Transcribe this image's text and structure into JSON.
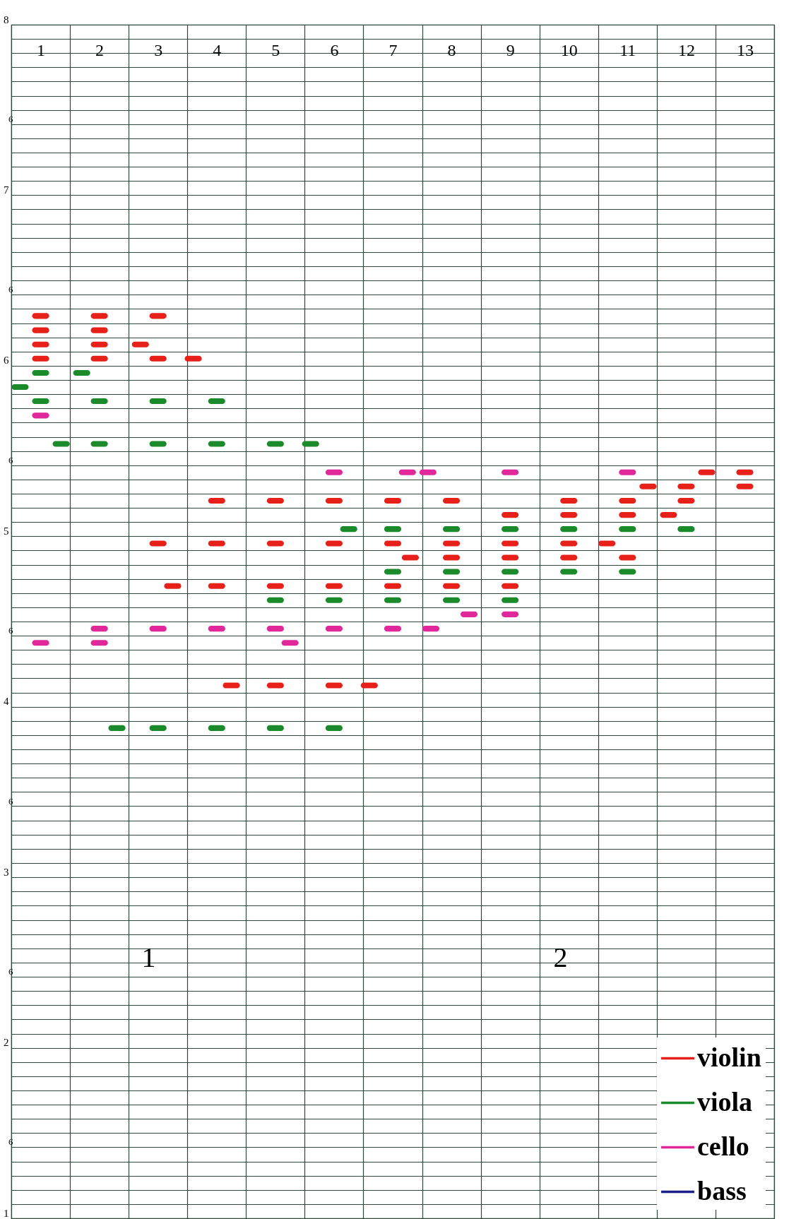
{
  "chart_data": {
    "type": "scatter",
    "annotations": [
      "6",
      "6",
      "6",
      "6",
      "6",
      "6",
      "6",
      "1",
      "2"
    ],
    "series": [
      {
        "name": "violin",
        "color": "#e8201a",
        "x": [
          1,
          2,
          3,
          1,
          2,
          1,
          2,
          2.7,
          1,
          2,
          3,
          3.6,
          12.35,
          13,
          11.35,
          12,
          13,
          4,
          5,
          6,
          7,
          8,
          10,
          11,
          12,
          9,
          10,
          11,
          11.7,
          3,
          4,
          5,
          6,
          7,
          8,
          9,
          10,
          10.65,
          7.3,
          8,
          9,
          10,
          11,
          3.25,
          4,
          5,
          6,
          7,
          8,
          9,
          4.25,
          5,
          6,
          6.6
        ],
        "values": [
          6.292,
          6.292,
          6.292,
          6.208,
          6.208,
          6.125,
          6.125,
          6.125,
          6.042,
          6.042,
          6.042,
          6.042,
          5.375,
          5.375,
          5.292,
          5.292,
          5.292,
          5.208,
          5.208,
          5.208,
          5.208,
          5.208,
          5.208,
          5.208,
          5.208,
          5.125,
          5.125,
          5.125,
          5.125,
          4.958,
          4.958,
          4.958,
          4.958,
          4.958,
          4.958,
          4.958,
          4.958,
          4.958,
          4.875,
          4.875,
          4.875,
          4.875,
          4.875,
          4.708,
          4.708,
          4.708,
          4.708,
          4.708,
          4.708,
          4.708,
          4.125,
          4.125,
          4.125,
          4.125
        ]
      },
      {
        "name": "viola",
        "color": "#1a8a2a",
        "x": [
          1,
          1.7,
          0.65,
          1,
          2,
          3,
          4,
          1.35,
          2,
          3,
          4,
          5,
          5.6,
          6.25,
          7,
          8,
          9,
          10,
          11,
          12,
          7,
          8,
          9,
          10,
          11,
          5,
          6,
          7,
          8,
          9,
          2.3,
          3,
          4,
          5,
          6
        ],
        "values": [
          5.958,
          5.958,
          5.875,
          5.792,
          5.792,
          5.792,
          5.792,
          5.542,
          5.542,
          5.542,
          5.542,
          5.542,
          5.542,
          5.042,
          5.042,
          5.042,
          5.042,
          5.042,
          5.042,
          5.042,
          4.792,
          4.792,
          4.792,
          4.792,
          4.792,
          4.625,
          4.625,
          4.625,
          4.625,
          4.625,
          3.875,
          3.875,
          3.875,
          3.875,
          3.875
        ]
      },
      {
        "name": "cello",
        "color": "#e0289a",
        "x": [
          1,
          6,
          7.25,
          7.6,
          9,
          11,
          8.3,
          9,
          2,
          3,
          4,
          5,
          6,
          7,
          7.65,
          1,
          2,
          5.25
        ],
        "values": [
          5.708,
          5.375,
          5.375,
          5.375,
          5.375,
          5.375,
          4.542,
          4.542,
          4.458,
          4.458,
          4.458,
          4.458,
          4.458,
          4.458,
          4.458,
          4.375,
          4.375,
          4.375
        ]
      },
      {
        "name": "bass",
        "color": "#1f1f8c"
      }
    ],
    "xlim": [
      0.5,
      13.5
    ],
    "xticks": [
      {
        "value": 0.5,
        "label": null
      },
      1,
      {
        "value": 1.5,
        "label": null
      },
      2,
      {
        "value": 2.5,
        "label": null
      },
      3,
      {
        "value": 3.5,
        "label": null
      },
      4,
      {
        "value": 4.5,
        "label": null
      },
      5,
      {
        "value": 5.5,
        "label": null
      },
      6,
      {
        "value": 6.5,
        "label": null
      },
      7,
      {
        "value": 7.5,
        "label": null
      },
      8,
      {
        "value": 8.5,
        "label": null
      },
      9,
      {
        "value": 9.5,
        "label": null
      },
      10,
      {
        "value": 10.5,
        "label": null
      },
      11,
      {
        "value": 11.5,
        "label": null
      },
      12,
      {
        "value": 12.5,
        "label": null
      },
      13,
      {
        "value": 13.5,
        "label": null
      }
    ],
    "ylim": [
      1,
      8
    ],
    "yticks": [
      1,
      {
        "value": 1.083,
        "label": null
      },
      {
        "value": 1.167,
        "label": null
      },
      {
        "value": 1.25,
        "label": null
      },
      {
        "value": 1.333,
        "label": null
      },
      {
        "value": 1.417,
        "label": null
      },
      {
        "value": 1.5,
        "label": null
      },
      {
        "value": 1.583,
        "label": null
      },
      {
        "value": 1.667,
        "label": null
      },
      {
        "value": 1.75,
        "label": null
      },
      {
        "value": 1.833,
        "label": null
      },
      {
        "value": 1.917,
        "label": null
      },
      2,
      {
        "value": 2.083,
        "label": null
      },
      {
        "value": 2.167,
        "label": null
      },
      {
        "value": 2.25,
        "label": null
      },
      {
        "value": 2.333,
        "label": null
      },
      {
        "value": 2.417,
        "label": null
      },
      {
        "value": 2.5,
        "label": null
      },
      {
        "value": 2.583,
        "label": null
      },
      {
        "value": 2.667,
        "label": null
      },
      {
        "value": 2.75,
        "label": null
      },
      {
        "value": 2.833,
        "label": null
      },
      {
        "value": 2.917,
        "label": null
      },
      3,
      {
        "value": 3.083,
        "label": null
      },
      {
        "value": 3.167,
        "label": null
      },
      {
        "value": 3.25,
        "label": null
      },
      {
        "value": 3.333,
        "label": null
      },
      {
        "value": 3.417,
        "label": null
      },
      {
        "value": 3.5,
        "label": null
      },
      {
        "value": 3.583,
        "label": null
      },
      {
        "value": 3.667,
        "label": null
      },
      {
        "value": 3.75,
        "label": null
      },
      {
        "value": 3.833,
        "label": null
      },
      {
        "value": 3.917,
        "label": null
      },
      4,
      {
        "value": 4.083,
        "label": null
      },
      {
        "value": 4.167,
        "label": null
      },
      {
        "value": 4.25,
        "label": null
      },
      {
        "value": 4.333,
        "label": null
      },
      {
        "value": 4.417,
        "label": null
      },
      {
        "value": 4.5,
        "label": null
      },
      {
        "value": 4.583,
        "label": null
      },
      {
        "value": 4.667,
        "label": null
      },
      {
        "value": 4.75,
        "label": null
      },
      {
        "value": 4.833,
        "label": null
      },
      {
        "value": 4.917,
        "label": null
      },
      5,
      {
        "value": 5.083,
        "label": null
      },
      {
        "value": 5.167,
        "label": null
      },
      {
        "value": 5.25,
        "label": null
      },
      {
        "value": 5.333,
        "label": null
      },
      {
        "value": 5.417,
        "label": null
      },
      {
        "value": 5.5,
        "label": null
      },
      {
        "value": 5.583,
        "label": null
      },
      {
        "value": 5.667,
        "label": null
      },
      {
        "value": 5.75,
        "label": null
      },
      {
        "value": 5.833,
        "label": null
      },
      {
        "value": 5.917,
        "label": null
      },
      6,
      {
        "value": 6.083,
        "label": null
      },
      {
        "value": 6.167,
        "label": null
      },
      {
        "value": 6.25,
        "label": null
      },
      {
        "value": 6.333,
        "label": null
      },
      {
        "value": 6.417,
        "label": null
      },
      {
        "value": 6.5,
        "label": null
      },
      {
        "value": 6.583,
        "label": null
      },
      {
        "value": 6.667,
        "label": null
      },
      {
        "value": 6.75,
        "label": null
      },
      {
        "value": 6.833,
        "label": null
      },
      {
        "value": 6.917,
        "label": null
      },
      7,
      {
        "value": 7.083,
        "label": null
      },
      {
        "value": 7.167,
        "label": null
      },
      {
        "value": 7.25,
        "label": null
      },
      {
        "value": 7.333,
        "label": null
      },
      {
        "value": 7.417,
        "label": null
      },
      {
        "value": 7.5,
        "label": null
      },
      {
        "value": 7.583,
        "label": null
      },
      {
        "value": 7.667,
        "label": null
      },
      {
        "value": 7.75,
        "label": null
      },
      {
        "value": 7.833,
        "label": null
      },
      {
        "value": 7.917,
        "label": null
      },
      8
    ],
    "grid": true,
    "legend": "bottom right"
  }
}
